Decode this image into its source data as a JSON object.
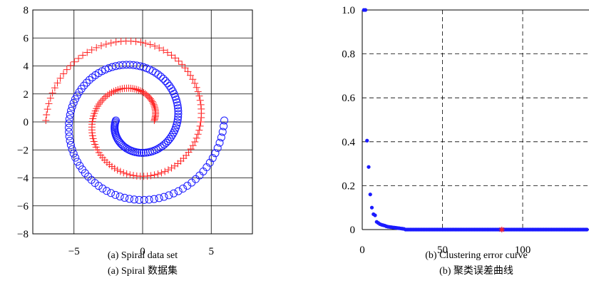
{
  "colors": {
    "red": "#ff2020",
    "blue": "#1a1aff",
    "grid": "#000000"
  },
  "captions": {
    "a_en": "(a) Spiral data set",
    "a_cn": "(a) Spiral 数据集",
    "b_en": "(b) Clustering error curve",
    "b_cn": "(b) 聚类误差曲线"
  },
  "chart_data": [
    {
      "type": "scatter",
      "xlim": [
        -8,
        8
      ],
      "ylim": [
        -8,
        8
      ],
      "x_ticks": [
        -5,
        0,
        5
      ],
      "x_tick_labels": [
        "−5",
        "0",
        "5"
      ],
      "y_ticks": [
        -8,
        -6,
        -4,
        -2,
        0,
        2,
        4,
        6,
        8
      ],
      "y_tick_labels": [
        "−8",
        "−6",
        "−4",
        "−2",
        "0",
        "2",
        "4",
        "6",
        "8"
      ],
      "grid": true,
      "series": [
        {
          "marker": "plus",
          "color": "#ff2020",
          "angle_start_deg": 0,
          "angle_end_deg": 540,
          "radius_start": 1.4,
          "radius_end": 6.5,
          "center": [
            -0.55,
            0.1
          ],
          "direction": "counterclockwise",
          "points": 150
        },
        {
          "marker": "circle",
          "color": "#1a1aff",
          "angle_start_deg": 180,
          "angle_end_deg": 720,
          "radius_start": 1.4,
          "radius_end": 6.5,
          "center": [
            -0.55,
            0.1
          ],
          "direction": "counterclockwise",
          "points": 150
        }
      ]
    },
    {
      "type": "scatter",
      "xlim": [
        0,
        140
      ],
      "ylim": [
        0,
        1.0
      ],
      "x_ticks": [
        0,
        50,
        100
      ],
      "x_tick_labels": [
        "0",
        "50",
        "100"
      ],
      "y_ticks": [
        0,
        0.2,
        0.4,
        0.6,
        0.8,
        1.0
      ],
      "y_tick_labels": [
        "0",
        "0.2",
        "0.4",
        "0.6",
        "0.8",
        "1.0"
      ],
      "grid": "dashed",
      "series": [
        {
          "marker": "dot",
          "color": "#1a1aff",
          "x": [
            1,
            2,
            3,
            4,
            5,
            6,
            7,
            8,
            9,
            10,
            11,
            12,
            13,
            14,
            15,
            16,
            17,
            18,
            19,
            20,
            21,
            22,
            23,
            24,
            25,
            26
          ],
          "y": [
            1.0,
            1.0,
            0.405,
            0.285,
            0.16,
            0.1,
            0.07,
            0.065,
            0.035,
            0.03,
            0.025,
            0.022,
            0.02,
            0.018,
            0.015,
            0.013,
            0.012,
            0.011,
            0.01,
            0.009,
            0.008,
            0.007,
            0.006,
            0.005,
            0.004,
            0.003
          ],
          "tail_start": 27,
          "tail_end": 140,
          "tail_value": 0
        },
        {
          "marker": "star",
          "color": "#ff2020",
          "x": [
            87
          ],
          "y": [
            0
          ]
        }
      ]
    }
  ]
}
